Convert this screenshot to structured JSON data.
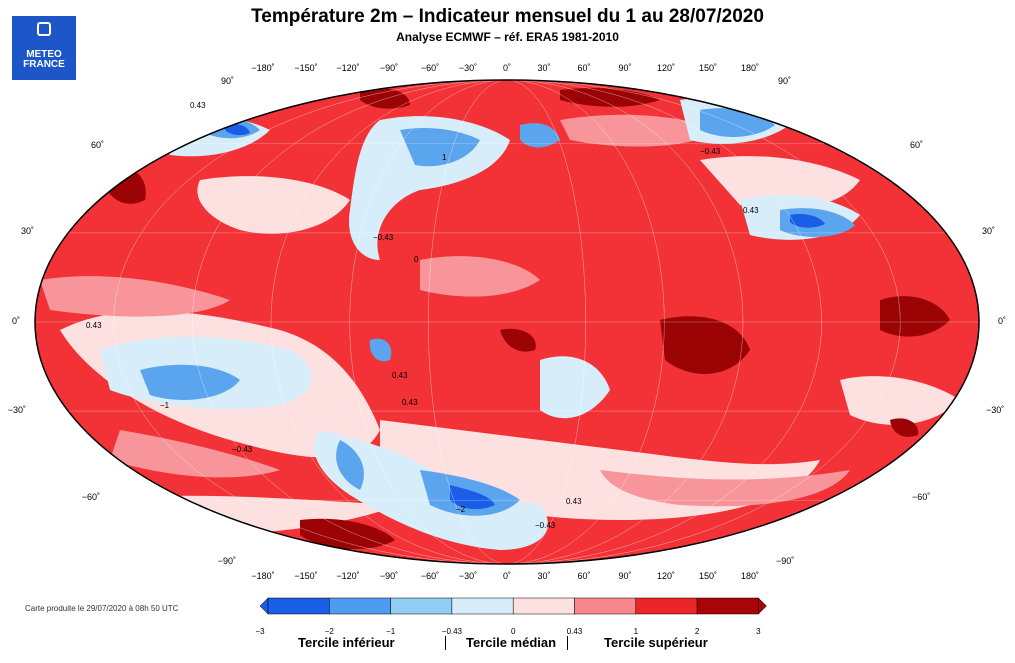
{
  "title": "Température 2m – Indicateur mensuel du 1 au 28/07/2020",
  "subtitle": "Analyse ECMWF – réf. ERA5 1981-2010",
  "logo": {
    "line1": "METEO",
    "line2": "FRANCE",
    "icon": "meteo-france-logo"
  },
  "credit": "Carte produite le 29/07/2020 à 08h 50 UTC",
  "lon_labels": [
    "−180˚",
    "−150˚",
    "−120˚",
    "−90˚",
    "−60˚",
    "−30˚",
    "0˚",
    "30˚",
    "60˚",
    "90˚",
    "120˚",
    "150˚",
    "180˚"
  ],
  "lat_labels_left": [
    "90˚",
    "60˚",
    "30˚",
    "0˚",
    "−30˚",
    "−60˚",
    "−90˚"
  ],
  "lat_labels_right": [
    "90˚",
    "60˚",
    "30˚",
    "0˚",
    "−30˚",
    "−60˚",
    "−90˚"
  ],
  "contour_labels": [
    "0.43",
    "−0.43",
    "0",
    "1",
    "−1",
    "0.43",
    "−0.43",
    "0.43",
    "−2",
    "0.43",
    "−0.43",
    "0.43",
    "0.43",
    "−0.43"
  ],
  "legend": {
    "ticks": [
      "−3",
      "−2",
      "−1",
      "−0.43",
      "0",
      "0.43",
      "1",
      "2",
      "3"
    ],
    "colors": [
      "#1a5de6",
      "#4e9cf0",
      "#8fcdf5",
      "#d7eefa",
      "#fde0e0",
      "#f7878c",
      "#ec2628",
      "#a80507"
    ],
    "terciles": [
      "Tercile inférieur",
      "Tercile médian",
      "Tercile supérieur"
    ]
  },
  "colors": {
    "map_background": "#f23236",
    "dark_red": "#9b0305",
    "pink": "#f8959a",
    "light_pink": "#fde0e0",
    "light_blue": "#d7eefa",
    "blue": "#5aa5ee"
  }
}
